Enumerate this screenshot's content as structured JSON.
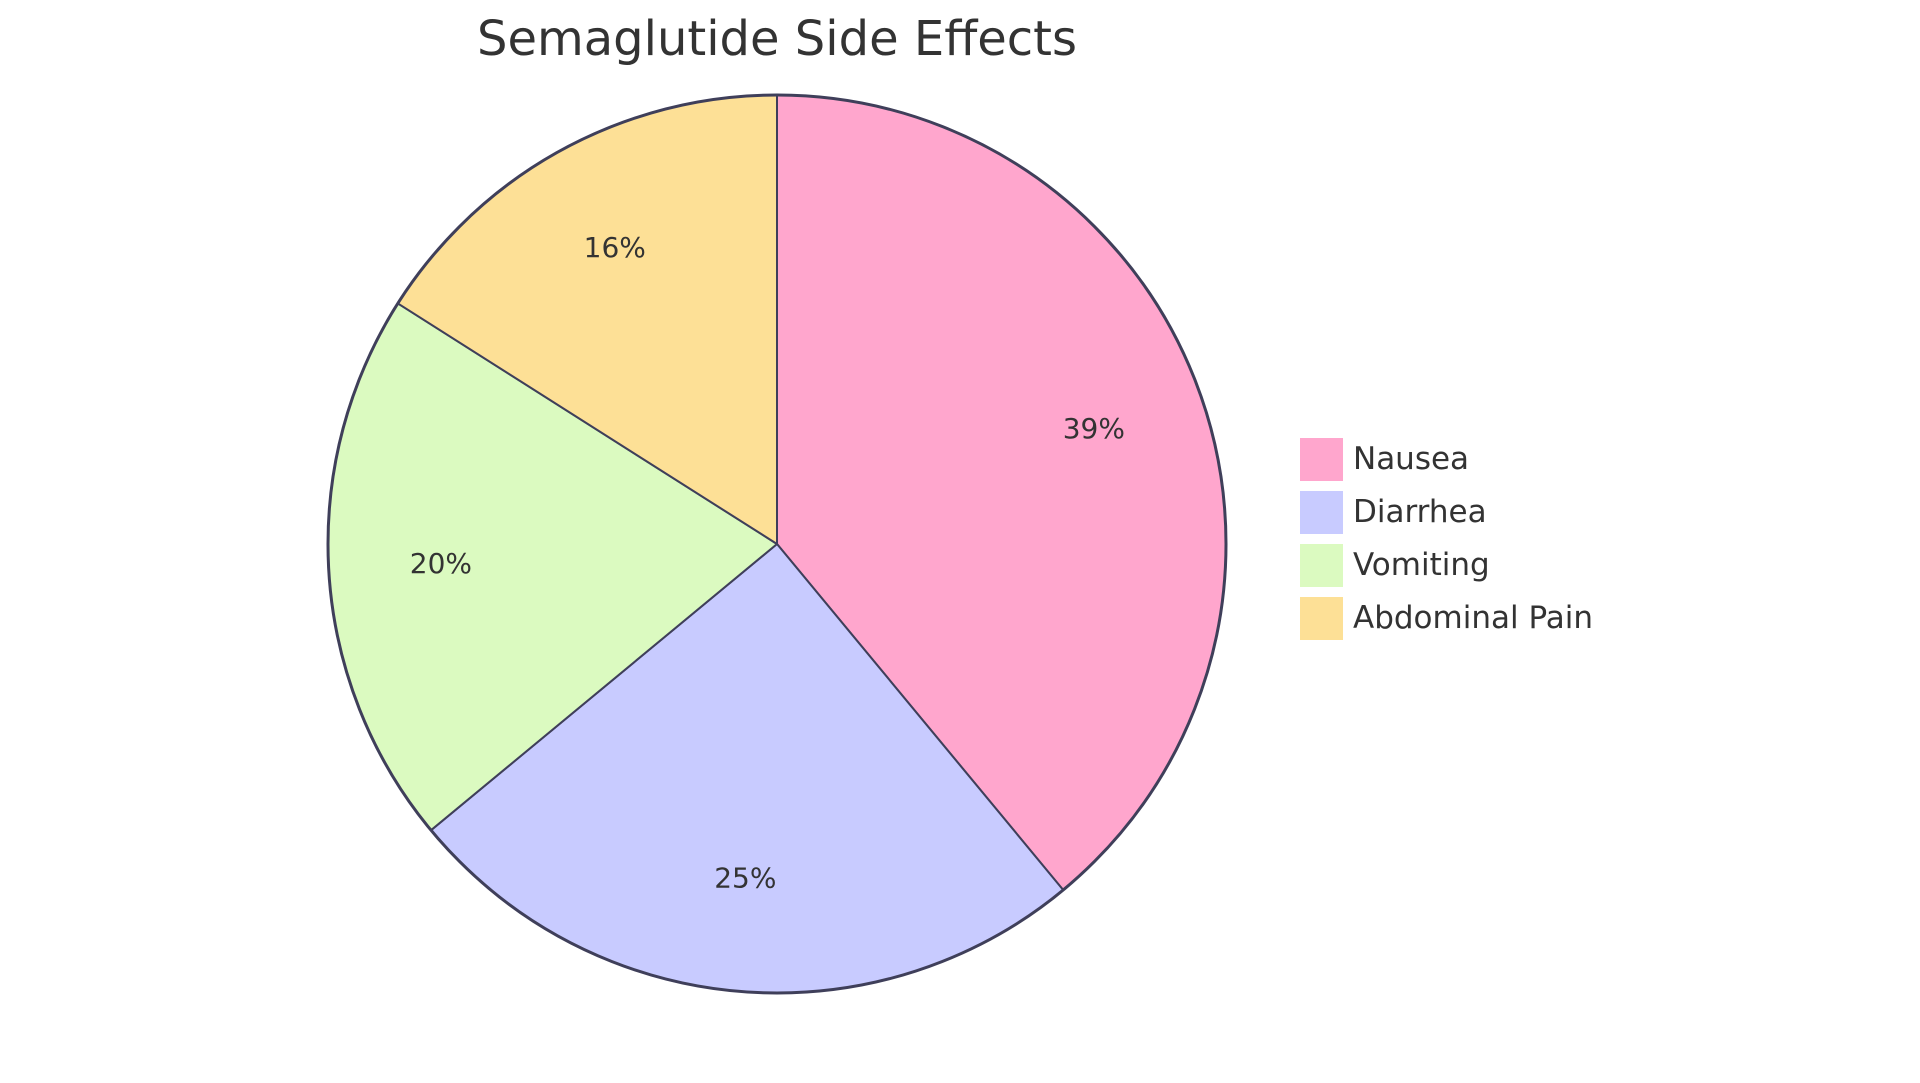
{
  "chart_data": {
    "type": "pie",
    "title": "Semaglutide Side Effects",
    "categories": [
      "Nausea",
      "Diarrhea",
      "Vomiting",
      "Abdominal Pain"
    ],
    "values": [
      39,
      25,
      20,
      16
    ],
    "value_labels": [
      "39%",
      "25%",
      "20%",
      "16%"
    ],
    "colors": [
      "#ffa6cd",
      "#c8cbff",
      "#dbfac0",
      "#fde096"
    ],
    "legend": "right"
  }
}
